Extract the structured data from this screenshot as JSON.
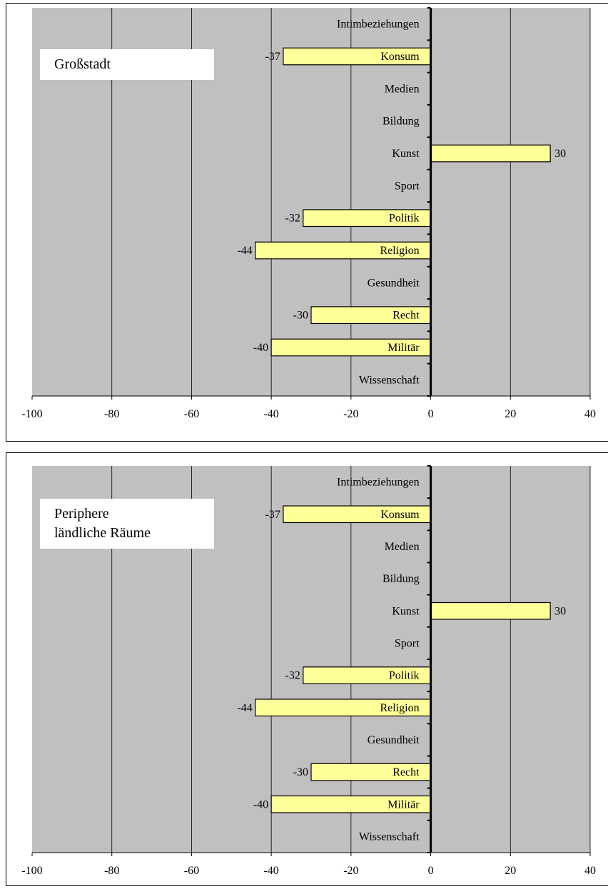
{
  "chart_data": [
    {
      "type": "bar",
      "orientation": "horizontal",
      "title": "Großstadt",
      "categories": [
        "Intimbeziehungen",
        "Konsum",
        "Medien",
        "Bildung",
        "Kunst",
        "Sport",
        "Politik",
        "Religion",
        "Gesundheit",
        "Recht",
        "Militär",
        "Wissenschaft"
      ],
      "values": [
        null,
        -37,
        null,
        null,
        30,
        null,
        -32,
        -44,
        null,
        -30,
        -40,
        null
      ],
      "value_labels": [
        "",
        "-37",
        "",
        "",
        "30",
        "",
        "-32",
        "-44",
        "",
        "-30",
        "-40",
        ""
      ],
      "xlim": [
        -100,
        40
      ],
      "x_ticks": [
        "-100",
        "-80",
        "-60",
        "-40",
        "-20",
        "0",
        "20",
        "40"
      ],
      "grid": true,
      "colors": {
        "plot_background": "#c0c0c0",
        "bar_fill": "#ffff99",
        "bar_stroke": "#000000"
      }
    },
    {
      "type": "bar",
      "orientation": "horizontal",
      "title": "Periphere\nländliche Räume",
      "categories": [
        "Intimbeziehungen",
        "Konsum",
        "Medien",
        "Bildung",
        "Kunst",
        "Sport",
        "Politik",
        "Religion",
        "Gesundheit",
        "Recht",
        "Militär",
        "Wissenschaft"
      ],
      "values": [
        null,
        -37,
        null,
        null,
        30,
        null,
        -32,
        -44,
        null,
        -30,
        -40,
        null
      ],
      "value_labels": [
        "",
        "-37",
        "",
        "",
        "30",
        "",
        "-32",
        "-44",
        "",
        "-30",
        "-40",
        ""
      ],
      "xlim": [
        -100,
        40
      ],
      "x_ticks": [
        "-100",
        "-80",
        "-60",
        "-40",
        "-20",
        "0",
        "20",
        "40"
      ],
      "grid": true,
      "colors": {
        "plot_background": "#c0c0c0",
        "bar_fill": "#ffff99",
        "bar_stroke": "#000000"
      }
    }
  ]
}
